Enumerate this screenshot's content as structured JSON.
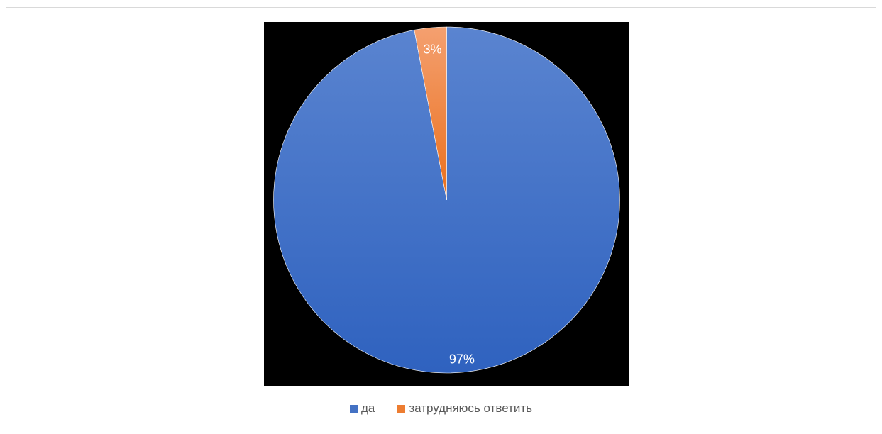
{
  "chart_data": {
    "type": "pie",
    "title": "",
    "categories": [
      "да",
      "затрудняюсь ответить"
    ],
    "values": [
      97,
      3
    ],
    "data_labels": [
      "97%",
      "3%"
    ],
    "colors": [
      "#4472c4",
      "#ed7d31"
    ],
    "plot_background": "#000000",
    "legend_position": "bottom",
    "grid": false
  }
}
